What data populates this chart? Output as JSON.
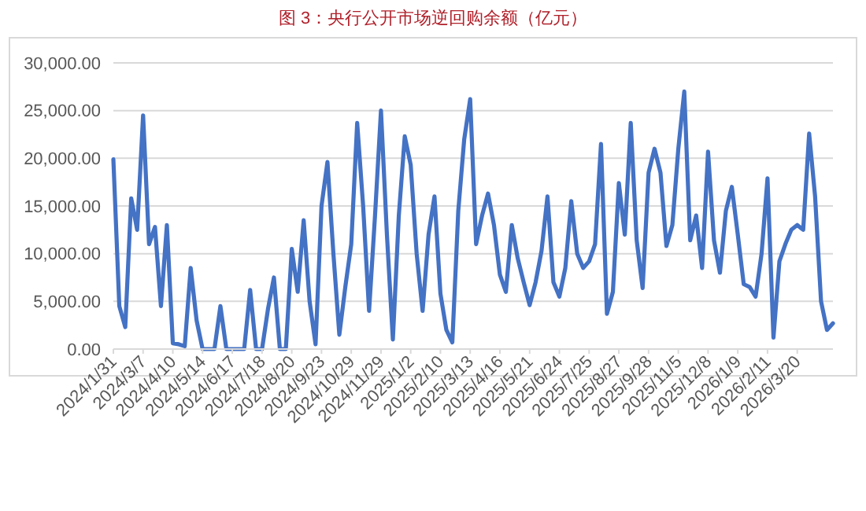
{
  "chart_data": {
    "type": "line",
    "title": "图 3：央行公开市场逆回购余额（亿元）",
    "categories": [
      "2024/1/31",
      null,
      null,
      null,
      null,
      "2024/3/7",
      null,
      null,
      null,
      null,
      "2024/4/10",
      null,
      null,
      null,
      null,
      "2024/5/14",
      null,
      null,
      null,
      null,
      "2024/6/17",
      null,
      null,
      null,
      null,
      "2024/7/18",
      null,
      null,
      null,
      null,
      "2024/8/20",
      null,
      null,
      null,
      null,
      "2024/9/23",
      null,
      null,
      null,
      null,
      "2024/10/29",
      null,
      null,
      null,
      null,
      "2024/11/29",
      null,
      null,
      null,
      null,
      "2025/1/2",
      null,
      null,
      null,
      null,
      "2025/2/10",
      null,
      null,
      null,
      null,
      "2025/3/13",
      null,
      null,
      null,
      null,
      "2025/4/16",
      null,
      null,
      null,
      null,
      "2025/5/21",
      null,
      null,
      null,
      null,
      "2025/6/24",
      null,
      null,
      null,
      null,
      "2025/7/25",
      null,
      null,
      null,
      null,
      "2025/8/27",
      null,
      null,
      null,
      null,
      "2025/9/28",
      null,
      null,
      null,
      null,
      "2025/11/5",
      null,
      null,
      null,
      null,
      "2025/12/8",
      null,
      null,
      null,
      null,
      "2026/1/9",
      null,
      null,
      null,
      null,
      "2026/2/11",
      null,
      null,
      null,
      null,
      "2026/3/20",
      null,
      null,
      null,
      null,
      null,
      null
    ],
    "series": [
      {
        "color": "#4472c4",
        "values": [
          19900,
          4500,
          2300,
          15800,
          12500,
          24500,
          11000,
          12800,
          4500,
          13000,
          600,
          500,
          300,
          8500,
          3000,
          0,
          0,
          0,
          4500,
          0,
          0,
          0,
          0,
          6200,
          0,
          0,
          4200,
          7500,
          0,
          0,
          10500,
          6000,
          13500,
          5000,
          500,
          15000,
          19600,
          10000,
          1500,
          6500,
          11000,
          23700,
          15000,
          4000,
          14000,
          25000,
          12000,
          1000,
          14000,
          22300,
          19300,
          10000,
          4000,
          12000,
          16000,
          5800,
          2000,
          700,
          14500,
          22000,
          26200,
          11000,
          14000,
          16300,
          13000,
          7800,
          6000,
          13000,
          9500,
          7000,
          4600,
          7000,
          10300,
          16000,
          7000,
          5500,
          8500,
          15500,
          10000,
          8500,
          9200,
          11000,
          21500,
          3700,
          6000,
          17400,
          12000,
          23700,
          11400,
          6400,
          18500,
          21000,
          18500,
          10800,
          13000,
          21000,
          27000,
          11400,
          14000,
          8500,
          20700,
          11400,
          8000,
          14500,
          17000,
          12000,
          6800,
          6500,
          5500,
          10000,
          17900,
          1200,
          9200,
          11000,
          12500,
          13000,
          12500,
          22600,
          16000,
          5000,
          2000,
          2700
        ]
      }
    ],
    "ylim": [
      0,
      30000
    ],
    "yticks": [
      {
        "value": 0,
        "label": "0.00"
      },
      {
        "value": 5000,
        "label": "5,000.00"
      },
      {
        "value": 10000,
        "label": "10,000.00"
      },
      {
        "value": 15000,
        "label": "15,000.00"
      },
      {
        "value": 20000,
        "label": "20,000.00"
      },
      {
        "value": 25000,
        "label": "25,000.00"
      },
      {
        "value": 30000,
        "label": "30,000.00"
      }
    ],
    "grid": "y",
    "marker": "none",
    "line_style": "solid"
  }
}
